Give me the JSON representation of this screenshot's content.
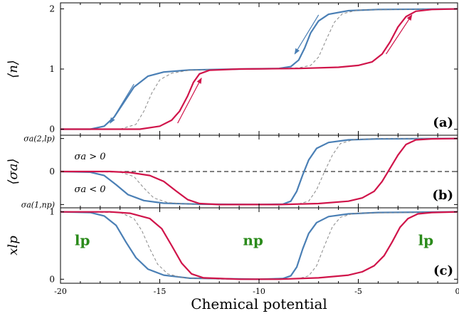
{
  "chart_data": [
    {
      "type": "line",
      "panel_label": "(a)",
      "ylabel": "⟨n⟩",
      "xlim": [
        -20,
        0
      ],
      "ylim": [
        -0.1,
        2.1
      ],
      "y_ticks": [
        {
          "value": 0,
          "label": "0"
        },
        {
          "value": 1,
          "label": "1"
        },
        {
          "value": 2,
          "label": "2"
        }
      ],
      "series": [
        {
          "color": "#4a7fb5",
          "dash": "solid",
          "points": [
            [
              -20,
              0
            ],
            [
              -18.5,
              0
            ],
            [
              -17.8,
              0.05
            ],
            [
              -17.3,
              0.2
            ],
            [
              -16.8,
              0.45
            ],
            [
              -16.3,
              0.7
            ],
            [
              -15.6,
              0.88
            ],
            [
              -14.8,
              0.95
            ],
            [
              -13.5,
              0.985
            ],
            [
              -11,
              1.0
            ],
            [
              -9,
              1.01
            ],
            [
              -8.4,
              1.04
            ],
            [
              -8.0,
              1.15
            ],
            [
              -7.7,
              1.35
            ],
            [
              -7.4,
              1.6
            ],
            [
              -7.0,
              1.8
            ],
            [
              -6.5,
              1.91
            ],
            [
              -5.5,
              1.97
            ],
            [
              -4,
              1.99
            ],
            [
              0,
              2.0
            ]
          ]
        },
        {
          "color": "#888888",
          "dash": "dashed",
          "points": [
            [
              -20,
              0
            ],
            [
              -17,
              0
            ],
            [
              -16.2,
              0.08
            ],
            [
              -15.8,
              0.3
            ],
            [
              -15.4,
              0.6
            ],
            [
              -15.0,
              0.82
            ],
            [
              -14.4,
              0.93
            ],
            [
              -13.5,
              0.98
            ],
            [
              -11,
              1.0
            ],
            [
              -8,
              1.02
            ],
            [
              -7.4,
              1.06
            ],
            [
              -7.0,
              1.2
            ],
            [
              -6.6,
              1.5
            ],
            [
              -6.2,
              1.78
            ],
            [
              -5.8,
              1.92
            ],
            [
              -5.0,
              1.98
            ],
            [
              0,
              2.0
            ]
          ]
        },
        {
          "color": "#d0144a",
          "dash": "solid",
          "points": [
            [
              -20,
              0
            ],
            [
              -16,
              0
            ],
            [
              -15,
              0.05
            ],
            [
              -14.4,
              0.15
            ],
            [
              -14.0,
              0.3
            ],
            [
              -13.6,
              0.55
            ],
            [
              -13.3,
              0.78
            ],
            [
              -13.0,
              0.92
            ],
            [
              -12.5,
              0.98
            ],
            [
              -11,
              1.0
            ],
            [
              -8,
              1.01
            ],
            [
              -6,
              1.03
            ],
            [
              -5,
              1.06
            ],
            [
              -4.3,
              1.12
            ],
            [
              -3.8,
              1.25
            ],
            [
              -3.4,
              1.45
            ],
            [
              -3.0,
              1.7
            ],
            [
              -2.6,
              1.87
            ],
            [
              -2.1,
              1.96
            ],
            [
              -1.3,
              1.99
            ],
            [
              0,
              2.0
            ]
          ]
        }
      ],
      "arrows": [
        {
          "color": "#4a7fb5",
          "from": [
            -16.3,
            0.75
          ],
          "to": [
            -17.5,
            0.1
          ]
        },
        {
          "color": "#d0144a",
          "from": [
            -14.1,
            0.1
          ],
          "to": [
            -12.9,
            0.85
          ]
        },
        {
          "color": "#4a7fb5",
          "from": [
            -7.0,
            1.9
          ],
          "to": [
            -8.2,
            1.25
          ]
        },
        {
          "color": "#d0144a",
          "from": [
            -3.6,
            1.25
          ],
          "to": [
            -2.3,
            1.9
          ]
        }
      ]
    },
    {
      "type": "line",
      "panel_label": "(b)",
      "ylabel": "⟨σa⟩",
      "xlim": [
        -20,
        0
      ],
      "ylim": [
        -1.1,
        1.1
      ],
      "y_ticks": [
        {
          "value": 1,
          "label": "σa(2,lp)"
        },
        {
          "value": 0,
          "label": "0"
        },
        {
          "value": -1,
          "label": "σa(1,np)"
        }
      ],
      "annotations": [
        {
          "text": "σa > 0",
          "x": -19.3,
          "y": 0.47
        },
        {
          "text": "σa < 0",
          "x": -19.3,
          "y": -0.52
        }
      ],
      "reference_line": {
        "y": 0,
        "dash": "dashed"
      },
      "series": [
        {
          "color": "#4a7fb5",
          "dash": "solid",
          "points": [
            [
              -20,
              0
            ],
            [
              -18.5,
              -0.02
            ],
            [
              -17.8,
              -0.12
            ],
            [
              -17.2,
              -0.4
            ],
            [
              -16.6,
              -0.7
            ],
            [
              -15.8,
              -0.88
            ],
            [
              -14.8,
              -0.96
            ],
            [
              -13,
              -0.99
            ],
            [
              -10,
              -1.0
            ],
            [
              -8.8,
              -0.99
            ],
            [
              -8.4,
              -0.9
            ],
            [
              -8.1,
              -0.6
            ],
            [
              -7.8,
              -0.1
            ],
            [
              -7.5,
              0.35
            ],
            [
              -7.1,
              0.7
            ],
            [
              -6.5,
              0.88
            ],
            [
              -5.5,
              0.96
            ],
            [
              -4,
              0.99
            ],
            [
              0,
              1.0
            ]
          ]
        },
        {
          "color": "#888888",
          "dash": "dashed",
          "points": [
            [
              -20,
              0
            ],
            [
              -17,
              -0.02
            ],
            [
              -16.3,
              -0.15
            ],
            [
              -15.8,
              -0.5
            ],
            [
              -15.3,
              -0.8
            ],
            [
              -14.6,
              -0.94
            ],
            [
              -13.5,
              -0.99
            ],
            [
              -10,
              -1.0
            ],
            [
              -8,
              -0.98
            ],
            [
              -7.5,
              -0.9
            ],
            [
              -7.1,
              -0.55
            ],
            [
              -6.7,
              0.0
            ],
            [
              -6.3,
              0.5
            ],
            [
              -5.9,
              0.85
            ],
            [
              -5.2,
              0.97
            ],
            [
              -4,
              1.0
            ],
            [
              0,
              1.0
            ]
          ]
        },
        {
          "color": "#d0144a",
          "dash": "solid",
          "points": [
            [
              -20,
              0
            ],
            [
              -17.5,
              0
            ],
            [
              -16.5,
              -0.03
            ],
            [
              -15.5,
              -0.12
            ],
            [
              -14.8,
              -0.3
            ],
            [
              -14.2,
              -0.58
            ],
            [
              -13.6,
              -0.85
            ],
            [
              -13.0,
              -0.97
            ],
            [
              -12,
              -1.0
            ],
            [
              -9,
              -1.0
            ],
            [
              -7,
              -0.97
            ],
            [
              -5.5,
              -0.9
            ],
            [
              -4.8,
              -0.8
            ],
            [
              -4.2,
              -0.6
            ],
            [
              -3.8,
              -0.3
            ],
            [
              -3.4,
              0.1
            ],
            [
              -3.0,
              0.5
            ],
            [
              -2.6,
              0.82
            ],
            [
              -2.1,
              0.96
            ],
            [
              -1.3,
              0.99
            ],
            [
              0,
              1.0
            ]
          ]
        }
      ]
    },
    {
      "type": "line",
      "panel_label": "(c)",
      "ylabel": "xlp",
      "xlabel": "Chemical potential",
      "xlim": [
        -20,
        0
      ],
      "ylim": [
        -0.06,
        1.06
      ],
      "x_ticks": [
        -20,
        -15,
        -10,
        -5,
        0
      ],
      "y_ticks": [
        {
          "value": 0,
          "label": "0"
        },
        {
          "value": 1,
          "label": "1"
        }
      ],
      "phase_labels": [
        {
          "text": "lp",
          "x": -18.9,
          "y": 0.58
        },
        {
          "text": "np",
          "x": -10.3,
          "y": 0.58
        },
        {
          "text": "lp",
          "x": -1.6,
          "y": 0.58
        }
      ],
      "phase_label_color": "#2a8a1a",
      "series": [
        {
          "color": "#4a7fb5",
          "dash": "solid",
          "points": [
            [
              -20,
              1.0
            ],
            [
              -18.5,
              0.99
            ],
            [
              -17.8,
              0.94
            ],
            [
              -17.2,
              0.8
            ],
            [
              -16.7,
              0.55
            ],
            [
              -16.2,
              0.32
            ],
            [
              -15.6,
              0.15
            ],
            [
              -14.8,
              0.06
            ],
            [
              -13.5,
              0.015
            ],
            [
              -10,
              0.0
            ],
            [
              -8.8,
              0.01
            ],
            [
              -8.4,
              0.05
            ],
            [
              -8.1,
              0.18
            ],
            [
              -7.8,
              0.45
            ],
            [
              -7.5,
              0.68
            ],
            [
              -7.1,
              0.84
            ],
            [
              -6.5,
              0.93
            ],
            [
              -5.5,
              0.97
            ],
            [
              -4,
              0.99
            ],
            [
              0,
              1.0
            ]
          ]
        },
        {
          "color": "#888888",
          "dash": "dashed",
          "points": [
            [
              -20,
              1.0
            ],
            [
              -17,
              0.99
            ],
            [
              -16.3,
              0.9
            ],
            [
              -15.9,
              0.72
            ],
            [
              -15.5,
              0.45
            ],
            [
              -15.1,
              0.22
            ],
            [
              -14.6,
              0.08
            ],
            [
              -13.8,
              0.02
            ],
            [
              -12,
              0.0
            ],
            [
              -8,
              0.01
            ],
            [
              -7.5,
              0.05
            ],
            [
              -7.1,
              0.2
            ],
            [
              -6.7,
              0.5
            ],
            [
              -6.3,
              0.78
            ],
            [
              -5.9,
              0.92
            ],
            [
              -5.2,
              0.98
            ],
            [
              0,
              1.0
            ]
          ]
        },
        {
          "color": "#d0144a",
          "dash": "solid",
          "points": [
            [
              -20,
              1.0
            ],
            [
              -17.5,
              1.0
            ],
            [
              -16.5,
              0.98
            ],
            [
              -15.5,
              0.9
            ],
            [
              -14.9,
              0.75
            ],
            [
              -14.4,
              0.5
            ],
            [
              -13.9,
              0.24
            ],
            [
              -13.4,
              0.08
            ],
            [
              -12.8,
              0.02
            ],
            [
              -11,
              0.0
            ],
            [
              -9,
              0.0
            ],
            [
              -7,
              0.02
            ],
            [
              -5.5,
              0.06
            ],
            [
              -4.8,
              0.11
            ],
            [
              -4.2,
              0.2
            ],
            [
              -3.7,
              0.35
            ],
            [
              -3.3,
              0.55
            ],
            [
              -2.9,
              0.77
            ],
            [
              -2.5,
              0.9
            ],
            [
              -2.0,
              0.97
            ],
            [
              -1.3,
              0.99
            ],
            [
              0,
              1.0
            ]
          ]
        }
      ]
    }
  ]
}
